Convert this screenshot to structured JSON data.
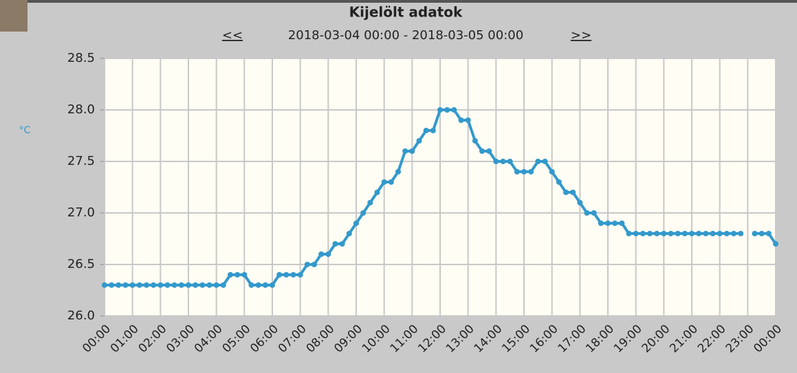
{
  "chart_data": {
    "type": "line",
    "title": "Kijelölt adatok",
    "nav_prev": "<<",
    "subtitle": "2018-03-04 00:00 - 2018-03-05 00:00",
    "nav_next": ">>",
    "y_unit": "°C",
    "color": "#3399cc",
    "grid": true,
    "xlim": [
      0,
      24
    ],
    "xticks": [
      {
        "value": 0,
        "label": "00:00"
      },
      {
        "value": 1,
        "label": "01:00"
      },
      {
        "value": 2,
        "label": "02:00"
      },
      {
        "value": 3,
        "label": "03:00"
      },
      {
        "value": 4,
        "label": "04:00"
      },
      {
        "value": 5,
        "label": "05:00"
      },
      {
        "value": 6,
        "label": "06:00"
      },
      {
        "value": 7,
        "label": "07:00"
      },
      {
        "value": 8,
        "label": "08:00"
      },
      {
        "value": 9,
        "label": "09:00"
      },
      {
        "value": 10,
        "label": "10:00"
      },
      {
        "value": 11,
        "label": "11:00"
      },
      {
        "value": 12,
        "label": "12:00"
      },
      {
        "value": 13,
        "label": "13:00"
      },
      {
        "value": 14,
        "label": "14:00"
      },
      {
        "value": 15,
        "label": "15:00"
      },
      {
        "value": 16,
        "label": "16:00"
      },
      {
        "value": 17,
        "label": "17:00"
      },
      {
        "value": 18,
        "label": "18:00"
      },
      {
        "value": 19,
        "label": "19:00"
      },
      {
        "value": 20,
        "label": "20:00"
      },
      {
        "value": 21,
        "label": "21:00"
      },
      {
        "value": 22,
        "label": "22:00"
      },
      {
        "value": 23,
        "label": "23:00"
      },
      {
        "value": 24,
        "label": "00:00"
      }
    ],
    "ylim": [
      26.0,
      28.5
    ],
    "yticks": [
      {
        "value": 26.0,
        "label": "26.0"
      },
      {
        "value": 26.5,
        "label": "26.5"
      },
      {
        "value": 27.0,
        "label": "27.0"
      },
      {
        "value": 27.5,
        "label": "27.5"
      },
      {
        "value": 28.0,
        "label": "28.0"
      },
      {
        "value": 28.5,
        "label": "28.5"
      }
    ],
    "x": [
      0,
      0.25,
      0.5,
      0.75,
      1,
      1.25,
      1.5,
      1.75,
      2,
      2.25,
      2.5,
      2.75,
      3,
      3.25,
      3.5,
      3.75,
      4,
      4.25,
      4.5,
      4.75,
      5,
      5.25,
      5.5,
      5.75,
      6,
      6.25,
      6.5,
      6.75,
      7,
      7.25,
      7.5,
      7.75,
      8,
      8.25,
      8.5,
      8.75,
      9,
      9.25,
      9.5,
      9.75,
      10,
      10.25,
      10.5,
      10.75,
      11,
      11.25,
      11.5,
      11.75,
      12,
      12.25,
      12.5,
      12.75,
      13,
      13.25,
      13.5,
      13.75,
      14,
      14.25,
      14.5,
      14.75,
      15,
      15.25,
      15.5,
      15.75,
      16,
      16.25,
      16.5,
      16.75,
      17,
      17.25,
      17.5,
      17.75,
      18,
      18.25,
      18.5,
      18.75,
      19,
      19.25,
      19.5,
      19.75,
      20,
      20.25,
      20.5,
      20.75,
      21,
      21.25,
      21.5,
      21.75,
      22,
      22.25,
      22.5,
      22.75,
      23,
      23.25,
      23.5,
      23.75,
      24
    ],
    "values": [
      26.3,
      26.3,
      26.3,
      26.3,
      26.3,
      26.3,
      26.3,
      26.3,
      26.3,
      26.3,
      26.3,
      26.3,
      26.3,
      26.3,
      26.3,
      26.3,
      26.3,
      26.3,
      26.4,
      26.4,
      26.4,
      26.3,
      26.3,
      26.3,
      26.3,
      26.4,
      26.4,
      26.4,
      26.4,
      26.5,
      26.5,
      26.6,
      26.6,
      26.7,
      26.7,
      26.8,
      26.9,
      27.0,
      27.1,
      27.2,
      27.3,
      27.3,
      27.4,
      27.6,
      27.6,
      27.7,
      27.8,
      27.8,
      28.0,
      28.0,
      28.0,
      27.9,
      27.9,
      27.7,
      27.6,
      27.6,
      27.5,
      27.5,
      27.5,
      27.4,
      27.4,
      27.4,
      27.5,
      27.5,
      27.4,
      27.3,
      27.2,
      27.2,
      27.1,
      27.0,
      27.0,
      26.9,
      26.9,
      26.9,
      26.9,
      26.8,
      26.8,
      26.8,
      26.8,
      26.8,
      26.8,
      26.8,
      26.8,
      26.8,
      26.8,
      26.8,
      26.8,
      26.8,
      26.8,
      26.8,
      26.8,
      26.8,
      null,
      26.8,
      26.8,
      26.8,
      26.7
    ]
  }
}
